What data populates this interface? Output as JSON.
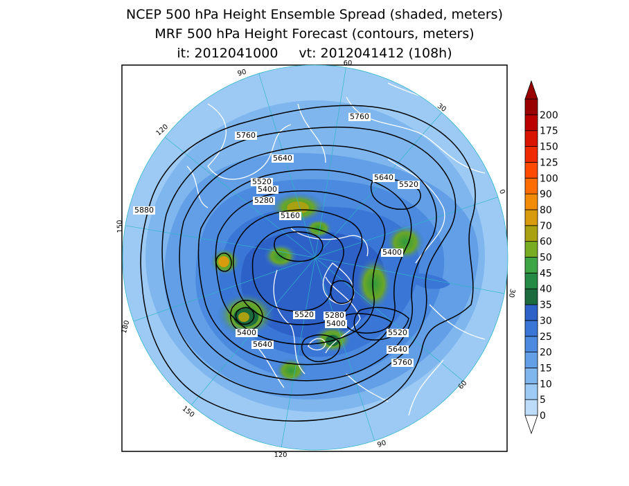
{
  "title": {
    "line1": "NCEP 500 hPa Height Ensemble Spread (shaded, meters)",
    "line2": "MRF 500 hPa Height Forecast (contours, meters)",
    "init_label": "it: 2012041000",
    "valid_label": "vt: 2012041412 (108h)"
  },
  "map": {
    "projection": "north-polar-stereographic",
    "longitude_labels": [
      "60",
      "30",
      "0",
      "30",
      "60",
      "90",
      "120",
      "150",
      "180",
      "150",
      "120",
      "90"
    ],
    "contour_labels": [
      "5760",
      "5760",
      "5640",
      "5640",
      "5520",
      "5520",
      "5400",
      "5280",
      "5160",
      "5400",
      "5880",
      "5520",
      "5280",
      "5400",
      "5400",
      "5640",
      "5520",
      "5640",
      "5760"
    ],
    "colors": {
      "ocean_frame": "#ffffff",
      "contour": "#000000",
      "coastline": "#ffffff",
      "meridian": "#2fb7c7"
    }
  },
  "colorbar": {
    "labels": [
      "0",
      "5",
      "10",
      "15",
      "20",
      "25",
      "30",
      "35",
      "40",
      "45",
      "50",
      "60",
      "70",
      "80",
      "90",
      "100",
      "125",
      "150",
      "175",
      "200"
    ],
    "colors": [
      "#bcdcfa",
      "#9ccaf5",
      "#7fb6ee",
      "#629fe6",
      "#4b8ade",
      "#3a76d6",
      "#2d61c7",
      "#1b6b3e",
      "#248a45",
      "#3da543",
      "#77ac23",
      "#a9a112",
      "#d89b0d",
      "#f28b05",
      "#ff6d00",
      "#ff4a00",
      "#f02a00",
      "#d91400",
      "#bb0000",
      "#990000"
    ]
  }
}
